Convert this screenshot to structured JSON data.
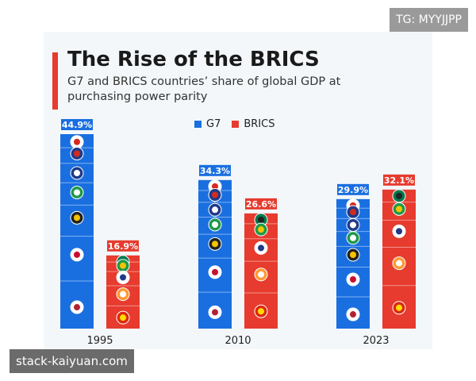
{
  "watermarks": {
    "top": "TG: MYYJJPP",
    "bottom": "stack-kaiyuan.com"
  },
  "colors": {
    "G7": "#1a6fe0",
    "BRICS": "#e63b2e",
    "accent": "#e63b2e"
  },
  "chart_data": {
    "type": "bar",
    "title": "The Rise of the BRICS",
    "subtitle": "G7 and BRICS countries’ share of global GDP at purchasing power parity",
    "categories": [
      "1995",
      "2010",
      "2023"
    ],
    "series": [
      {
        "name": "G7",
        "values": [
          44.9,
          34.3,
          29.9
        ],
        "labels": [
          "44.9%",
          "34.3%",
          "29.9%"
        ],
        "flags": [
          "canada-flag-icon",
          "uk-flag-icon",
          "france-flag-icon",
          "italy-flag-icon",
          "germany-flag-icon",
          "japan-flag-icon",
          "usa-flag-icon"
        ]
      },
      {
        "name": "BRICS",
        "values": [
          16.9,
          26.6,
          32.1
        ],
        "labels": [
          "16.9%",
          "26.6%",
          "32.1%"
        ],
        "flags": [
          "south-africa-flag-icon",
          "brazil-flag-icon",
          "russia-flag-icon",
          "india-flag-icon",
          "china-flag-icon"
        ]
      }
    ],
    "ylim": [
      0,
      46
    ],
    "legend": "top-right",
    "grid": false
  }
}
